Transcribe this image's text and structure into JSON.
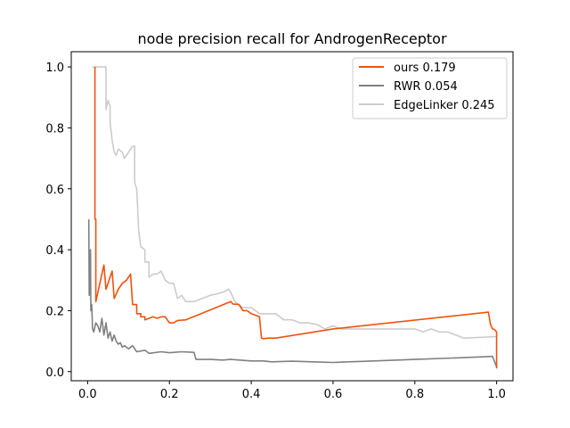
{
  "chart_data": {
    "type": "line",
    "title": "node precision recall for AndrogenReceptor",
    "xlabel": "",
    "ylabel": "",
    "xlim": [
      -0.04,
      1.04
    ],
    "ylim": [
      -0.03,
      1.05
    ],
    "xticks": [
      0.0,
      0.2,
      0.4,
      0.6,
      0.8,
      1.0
    ],
    "yticks": [
      0.0,
      0.2,
      0.4,
      0.6,
      0.8,
      1.0
    ],
    "xtick_labels": [
      "0.0",
      "0.2",
      "0.4",
      "0.6",
      "0.8",
      "1.0"
    ],
    "ytick_labels": [
      "0.0",
      "0.2",
      "0.4",
      "0.6",
      "0.8",
      "1.0"
    ],
    "grid": false,
    "legend_position": "top-right",
    "series": [
      {
        "name": "ours 0.179",
        "color": "#f0520f",
        "points": [
          [
            0.018,
            1.0
          ],
          [
            0.018,
            0.5
          ],
          [
            0.02,
            0.5
          ],
          [
            0.02,
            0.23
          ],
          [
            0.025,
            0.26
          ],
          [
            0.03,
            0.29
          ],
          [
            0.035,
            0.32
          ],
          [
            0.04,
            0.35
          ],
          [
            0.045,
            0.27
          ],
          [
            0.055,
            0.31
          ],
          [
            0.06,
            0.33
          ],
          [
            0.065,
            0.24
          ],
          [
            0.075,
            0.27
          ],
          [
            0.085,
            0.29
          ],
          [
            0.095,
            0.3
          ],
          [
            0.1,
            0.31
          ],
          [
            0.105,
            0.32
          ],
          [
            0.11,
            0.22
          ],
          [
            0.12,
            0.22
          ],
          [
            0.12,
            0.19
          ],
          [
            0.13,
            0.19
          ],
          [
            0.13,
            0.18
          ],
          [
            0.14,
            0.18
          ],
          [
            0.14,
            0.17
          ],
          [
            0.16,
            0.18
          ],
          [
            0.17,
            0.175
          ],
          [
            0.18,
            0.18
          ],
          [
            0.19,
            0.18
          ],
          [
            0.2,
            0.16
          ],
          [
            0.21,
            0.16
          ],
          [
            0.22,
            0.168
          ],
          [
            0.24,
            0.17
          ],
          [
            0.35,
            0.23
          ],
          [
            0.355,
            0.222
          ],
          [
            0.37,
            0.22
          ],
          [
            0.375,
            0.21
          ],
          [
            0.38,
            0.2
          ],
          [
            0.39,
            0.2
          ],
          [
            0.4,
            0.19
          ],
          [
            0.42,
            0.18
          ],
          [
            0.425,
            0.11
          ],
          [
            0.43,
            0.108
          ],
          [
            0.44,
            0.11
          ],
          [
            0.46,
            0.11
          ],
          [
            0.6,
            0.14
          ],
          [
            0.98,
            0.195
          ],
          [
            0.985,
            0.155
          ],
          [
            0.99,
            0.14
          ],
          [
            0.995,
            0.138
          ],
          [
            1.0,
            0.13
          ],
          [
            1.0,
            0.01
          ]
        ]
      },
      {
        "name": "RWR 0.054",
        "color": "#808080",
        "points": [
          [
            0.003,
            0.5
          ],
          [
            0.004,
            0.25
          ],
          [
            0.005,
            0.35
          ],
          [
            0.006,
            0.27
          ],
          [
            0.007,
            0.4
          ],
          [
            0.008,
            0.2
          ],
          [
            0.01,
            0.22
          ],
          [
            0.012,
            0.14
          ],
          [
            0.015,
            0.13
          ],
          [
            0.02,
            0.16
          ],
          [
            0.025,
            0.15
          ],
          [
            0.03,
            0.13
          ],
          [
            0.035,
            0.175
          ],
          [
            0.04,
            0.12
          ],
          [
            0.045,
            0.16
          ],
          [
            0.05,
            0.11
          ],
          [
            0.055,
            0.13
          ],
          [
            0.06,
            0.1
          ],
          [
            0.065,
            0.12
          ],
          [
            0.07,
            0.1
          ],
          [
            0.075,
            0.09
          ],
          [
            0.08,
            0.095
          ],
          [
            0.085,
            0.08
          ],
          [
            0.09,
            0.085
          ],
          [
            0.1,
            0.075
          ],
          [
            0.11,
            0.085
          ],
          [
            0.115,
            0.075
          ],
          [
            0.12,
            0.065
          ],
          [
            0.14,
            0.07
          ],
          [
            0.15,
            0.06
          ],
          [
            0.18,
            0.065
          ],
          [
            0.2,
            0.062
          ],
          [
            0.23,
            0.065
          ],
          [
            0.26,
            0.063
          ],
          [
            0.265,
            0.04
          ],
          [
            0.3,
            0.04
          ],
          [
            0.33,
            0.038
          ],
          [
            0.35,
            0.04
          ],
          [
            0.4,
            0.035
          ],
          [
            0.43,
            0.035
          ],
          [
            0.45,
            0.032
          ],
          [
            0.5,
            0.034
          ],
          [
            0.55,
            0.032
          ],
          [
            0.6,
            0.03
          ],
          [
            0.7,
            0.035
          ],
          [
            0.8,
            0.04
          ],
          [
            0.9,
            0.045
          ],
          [
            0.99,
            0.05
          ],
          [
            1.0,
            0.015
          ]
        ]
      },
      {
        "name": "EdgeLinker 0.245",
        "color": "#cccccc",
        "points": [
          [
            0.012,
            1.0
          ],
          [
            0.045,
            1.0
          ],
          [
            0.045,
            0.86
          ],
          [
            0.05,
            0.89
          ],
          [
            0.055,
            0.87
          ],
          [
            0.055,
            0.82
          ],
          [
            0.06,
            0.76
          ],
          [
            0.065,
            0.72
          ],
          [
            0.07,
            0.71
          ],
          [
            0.075,
            0.73
          ],
          [
            0.085,
            0.72
          ],
          [
            0.09,
            0.7
          ],
          [
            0.1,
            0.72
          ],
          [
            0.11,
            0.74
          ],
          [
            0.115,
            0.74
          ],
          [
            0.115,
            0.62
          ],
          [
            0.12,
            0.6
          ],
          [
            0.125,
            0.46
          ],
          [
            0.13,
            0.41
          ],
          [
            0.14,
            0.4
          ],
          [
            0.14,
            0.36
          ],
          [
            0.15,
            0.36
          ],
          [
            0.15,
            0.31
          ],
          [
            0.16,
            0.32
          ],
          [
            0.17,
            0.32
          ],
          [
            0.18,
            0.33
          ],
          [
            0.19,
            0.3
          ],
          [
            0.2,
            0.29
          ],
          [
            0.21,
            0.29
          ],
          [
            0.22,
            0.24
          ],
          [
            0.23,
            0.25
          ],
          [
            0.24,
            0.23
          ],
          [
            0.26,
            0.23
          ],
          [
            0.28,
            0.24
          ],
          [
            0.3,
            0.25
          ],
          [
            0.33,
            0.26
          ],
          [
            0.345,
            0.27
          ],
          [
            0.35,
            0.26
          ],
          [
            0.36,
            0.23
          ],
          [
            0.38,
            0.21
          ],
          [
            0.4,
            0.21
          ],
          [
            0.42,
            0.19
          ],
          [
            0.44,
            0.19
          ],
          [
            0.46,
            0.19
          ],
          [
            0.48,
            0.17
          ],
          [
            0.5,
            0.17
          ],
          [
            0.52,
            0.16
          ],
          [
            0.54,
            0.16
          ],
          [
            0.56,
            0.155
          ],
          [
            0.58,
            0.14
          ],
          [
            0.6,
            0.15
          ],
          [
            0.62,
            0.14
          ],
          [
            0.64,
            0.14
          ],
          [
            0.7,
            0.14
          ],
          [
            0.75,
            0.14
          ],
          [
            0.8,
            0.14
          ],
          [
            0.82,
            0.13
          ],
          [
            0.84,
            0.14
          ],
          [
            0.86,
            0.13
          ],
          [
            0.88,
            0.13
          ],
          [
            0.9,
            0.12
          ],
          [
            0.92,
            0.11
          ],
          [
            1.0,
            0.115
          ]
        ]
      }
    ]
  }
}
